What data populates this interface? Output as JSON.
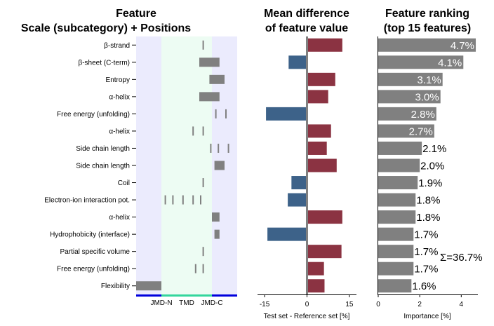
{
  "chart_data": [
    {
      "type": "heatmap",
      "title_line1": "Feature",
      "title_line2": "Scale (subcategory)  +  Positions",
      "features": [
        "β-strand",
        "β-sheet (C-term)",
        "Entropy",
        "α-helix",
        "Free energy (unfolding)",
        "α-helix",
        "Side chain length",
        "Side chain length",
        "Coil",
        "Electron-ion interaction pot.",
        "α-helix",
        "Hydrophobicity (interface)",
        "Partial specific volume",
        "Free energy (unfolding)",
        "Flexibility"
      ],
      "position_range": [
        0,
        40
      ],
      "region_bounds": [
        10,
        30
      ],
      "region_labels": [
        "JMD-N",
        "TMD",
        "JMD-C"
      ],
      "region_colors": {
        "jmd": "#ebebfd",
        "tmd": "#edfcf3",
        "jmd_bar": "#0000dd",
        "tmd_bar": "#33d69c"
      },
      "positions": [
        [
          27
        ],
        [
          26,
          27,
          28,
          29,
          30,
          31,
          32,
          33
        ],
        [
          30,
          31,
          32,
          33,
          34,
          35
        ],
        [
          26,
          27,
          28,
          29,
          30,
          31,
          32,
          33
        ],
        [
          32,
          36
        ],
        [
          23,
          27
        ],
        [
          30,
          33,
          37
        ],
        [
          32,
          33,
          34,
          35
        ],
        [
          27
        ],
        [
          12,
          15,
          19,
          23,
          26
        ],
        [
          31,
          32,
          33
        ],
        [
          32,
          33
        ],
        [
          27
        ],
        [
          24,
          27
        ],
        [
          1,
          2,
          3,
          4,
          5,
          6,
          7,
          8,
          9,
          10
        ]
      ],
      "bar_color": "#808080"
    },
    {
      "type": "bar",
      "orientation": "horizontal",
      "title_line1": "Mean difference",
      "title_line2": "of feature value",
      "xlabel": "Test set - Reference set [%]",
      "xlim": [
        -17.5,
        17.5
      ],
      "xticks": [
        -15,
        0,
        15
      ],
      "xtick_labels": [
        "-15",
        "0",
        "15"
      ],
      "values": [
        12.5,
        -6.5,
        10,
        7.5,
        -14.5,
        8.5,
        7,
        10.5,
        -5.5,
        -6.8,
        12.5,
        -14,
        12.2,
        6,
        6.2
      ],
      "positive_color": "#8b3342",
      "negative_color": "#3d6289",
      "zero_line_color": "#808080"
    },
    {
      "type": "bar",
      "orientation": "horizontal",
      "title_line1": "Feature ranking",
      "title_line2": "(top 15 features)",
      "xlabel": "Importance [%]",
      "xlim": [
        0,
        4.8
      ],
      "xticks": [
        0,
        2,
        4
      ],
      "xtick_labels": [
        "0",
        "2",
        "4"
      ],
      "values": [
        4.7,
        4.1,
        3.1,
        3.0,
        2.8,
        2.7,
        2.1,
        2.0,
        1.9,
        1.8,
        1.8,
        1.7,
        1.7,
        1.7,
        1.6
      ],
      "labels": [
        "4.7%",
        "4.1%",
        "3.1%",
        "3.0%",
        "2.8%",
        "2.7%",
        "2.1%",
        "2.0%",
        "1.9%",
        "1.8%",
        "1.8%",
        "1.7%",
        "1.7%",
        "1.7%",
        "1.6%"
      ],
      "label_inside_count": 6,
      "bar_color": "#808080",
      "sum_label": "Σ=36.7%"
    }
  ]
}
